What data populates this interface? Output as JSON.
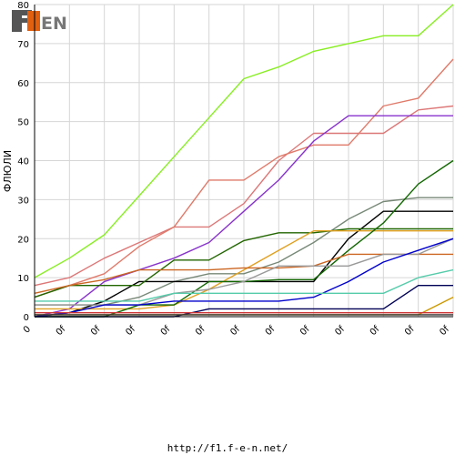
{
  "chart_data": {
    "type": "line",
    "title": "",
    "ylabel": "ФЛЮЛИ",
    "xlabel": "",
    "ylim": [
      0,
      80
    ],
    "yticks": [
      0,
      10,
      20,
      30,
      40,
      50,
      60,
      70,
      80
    ],
    "categories": [
      "0",
      "0f",
      "0f",
      "0f",
      "0f",
      "0f",
      "0f",
      "0f",
      "0f",
      "0f",
      "0f",
      "0f",
      "0f"
    ],
    "grid": true,
    "legend": "none",
    "series": [
      {
        "color": "#88ee22",
        "values": [
          10,
          15,
          21,
          31,
          41,
          51,
          61,
          64,
          68,
          70,
          72,
          72,
          80
        ]
      },
      {
        "color": "#dd7777",
        "values": [
          8,
          10,
          15,
          19,
          23,
          23,
          29,
          40,
          47,
          47,
          47,
          53,
          54
        ]
      },
      {
        "color": "#e07a6a",
        "values": [
          5,
          8,
          11,
          18,
          23,
          35,
          35,
          41,
          44,
          44,
          54,
          56,
          66
        ]
      },
      {
        "color": "#8833cc",
        "values": [
          0,
          2,
          9,
          12,
          15,
          19,
          27,
          35,
          45,
          51.5,
          51.5,
          51.5,
          51.5
        ]
      },
      {
        "color": "#778877",
        "values": [
          3,
          3,
          3,
          5,
          9,
          11,
          11,
          14,
          19,
          25,
          29.5,
          30.5,
          30.5
        ]
      },
      {
        "color": "#000000",
        "values": [
          0,
          1,
          4,
          9,
          9,
          9,
          9,
          9,
          9,
          20,
          27,
          27,
          27
        ]
      },
      {
        "color": "#226600",
        "values": [
          5,
          8,
          8,
          8,
          14.5,
          14.5,
          19.5,
          21.5,
          21.5,
          22.5,
          22.5,
          22.5,
          22.5
        ]
      },
      {
        "color": "#e0a020",
        "values": [
          2,
          2,
          2,
          2,
          3,
          7,
          12,
          17,
          22,
          22,
          22,
          22,
          22
        ]
      },
      {
        "color": "#116600",
        "values": [
          0,
          0,
          0,
          3,
          3,
          9,
          9,
          9.5,
          9.5,
          17,
          24,
          34,
          40
        ]
      },
      {
        "color": "#cc6622",
        "values": [
          6,
          8,
          9.5,
          12,
          12,
          12,
          12.5,
          12.5,
          13,
          16,
          16,
          16,
          16
        ]
      },
      {
        "color": "#999999",
        "values": [
          3,
          3,
          3,
          3,
          6,
          7,
          9,
          13,
          13,
          13,
          16,
          16,
          20
        ]
      },
      {
        "color": "#0000cc",
        "values": [
          0,
          1,
          3,
          3,
          4,
          4,
          4,
          4,
          5,
          9,
          14,
          17,
          20
        ]
      },
      {
        "color": "#55ccaa",
        "values": [
          4,
          4,
          4,
          4,
          6,
          6,
          6,
          6,
          6,
          6,
          6,
          10,
          12
        ]
      },
      {
        "color": "#000055",
        "values": [
          0,
          0,
          0,
          0,
          0,
          2,
          2,
          2,
          2,
          2,
          2,
          8,
          8
        ]
      },
      {
        "color": "#cc9900",
        "values": [
          0.5,
          0.5,
          0.5,
          0.5,
          0.5,
          0.5,
          0.5,
          0.5,
          0.5,
          0.5,
          0.5,
          0.5,
          5
        ]
      },
      {
        "color": "#333333",
        "values": [
          0.5,
          0.5,
          0.5,
          0.5,
          0.5,
          0.5,
          0.5,
          0.5,
          0.5,
          0.5,
          0.5,
          0.5,
          0.5
        ]
      },
      {
        "color": "#cc3333",
        "values": [
          1,
          1,
          1,
          1,
          1,
          1,
          1,
          1,
          1,
          1,
          1,
          1,
          1
        ]
      }
    ]
  },
  "logo": {
    "text": "F1EN",
    "icon": "f1en-logo"
  },
  "footer": {
    "url": "http://f1.f-e-n.net/"
  }
}
